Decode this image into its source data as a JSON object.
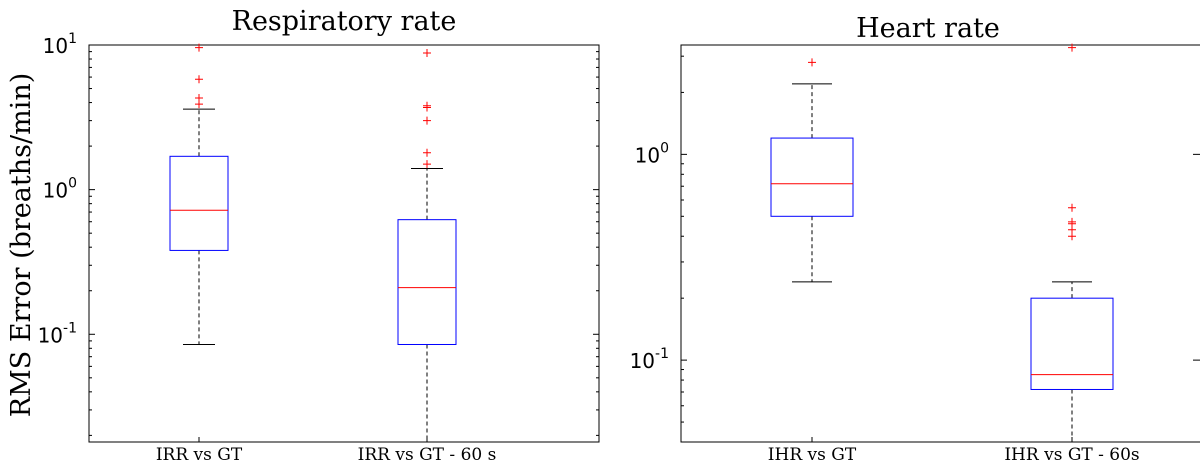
{
  "chart_data": [
    {
      "type": "box",
      "title": "Respiratory rate",
      "ylabel": "RMS Error (breaths/min)",
      "xlabel": "",
      "yscale": "log",
      "ylim": [
        0.018,
        10
      ],
      "yticks": [
        {
          "value": 0.1,
          "base": "10",
          "exp": "-1"
        },
        {
          "value": 1,
          "base": "10",
          "exp": "0"
        },
        {
          "value": 10,
          "base": "10",
          "exp": "1"
        }
      ],
      "categories": [
        "IRR vs GT",
        "IRR vs GT - 60 s"
      ],
      "boxes": [
        {
          "whisker_low": 0.085,
          "q1": 0.38,
          "median": 0.72,
          "q3": 1.7,
          "whisker_high": 3.6,
          "outliers": [
            9.6,
            5.8,
            4.3,
            3.9
          ]
        },
        {
          "whisker_low": 0.018,
          "q1": 0.085,
          "median": 0.21,
          "q3": 0.62,
          "whisker_high": 1.4,
          "outliers": [
            8.8,
            3.8,
            3.7,
            3.0,
            1.8,
            1.5
          ]
        }
      ],
      "colors": {
        "box": "#0000ff",
        "median": "#ff0000",
        "outlier": "#ff0000",
        "whisker": "#000000"
      }
    },
    {
      "type": "box",
      "title": "Heart rate",
      "ylabel": "",
      "xlabel": "",
      "yscale": "log",
      "ylim": [
        0.04,
        3.4
      ],
      "yticks": [
        {
          "value": 0.1,
          "base": "10",
          "exp": "-1"
        },
        {
          "value": 1,
          "base": "10",
          "exp": "0"
        }
      ],
      "categories": [
        "IHR vs GT",
        "IHR vs GT - 60s"
      ],
      "boxes": [
        {
          "whisker_low": 0.24,
          "q1": 0.5,
          "median": 0.72,
          "q3": 1.2,
          "whisker_high": 2.2,
          "outliers": [
            2.8
          ]
        },
        {
          "whisker_low": 0.04,
          "q1": 0.072,
          "median": 0.085,
          "q3": 0.2,
          "whisker_high": 0.24,
          "outliers": [
            3.3,
            0.55,
            0.47,
            0.46,
            0.43,
            0.4
          ]
        }
      ],
      "colors": {
        "box": "#0000ff",
        "median": "#ff0000",
        "outlier": "#ff0000",
        "whisker": "#000000"
      }
    }
  ]
}
